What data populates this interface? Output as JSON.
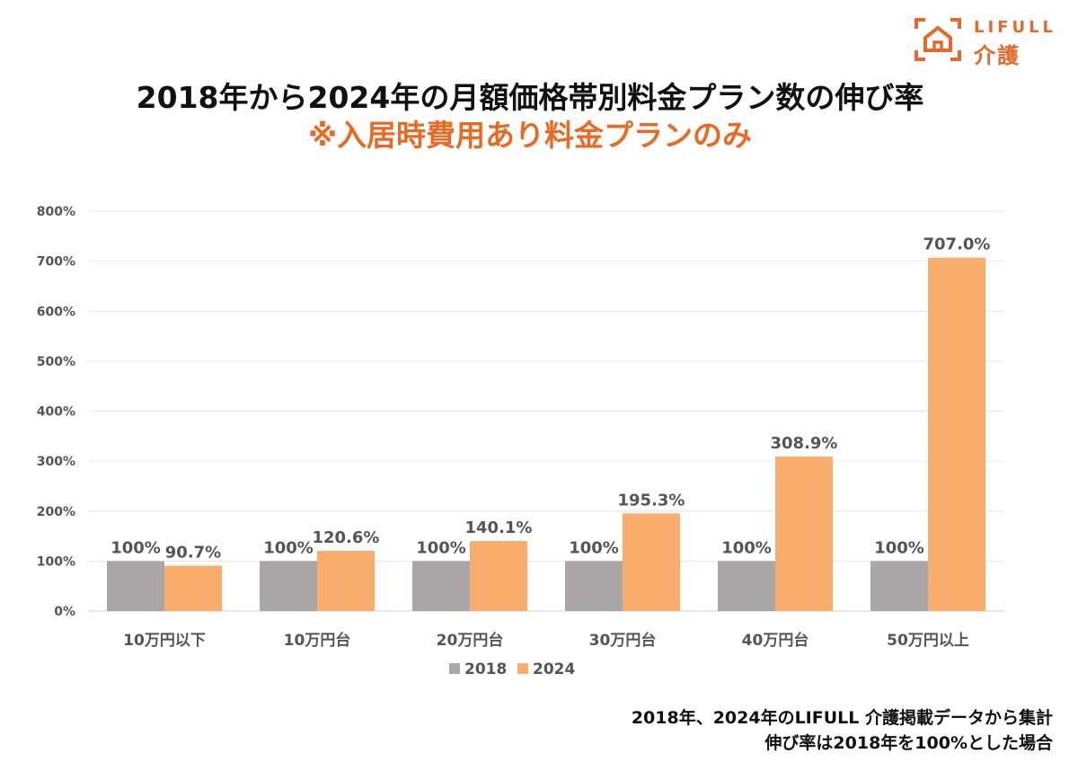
{
  "logo": {
    "brand_en": "LIFULL",
    "brand_jp": "介護"
  },
  "header": {
    "title": "2018年から2024年の月額価格帯別料金プラン数の伸び率",
    "subtitle": "※入居時費用あり料金プランのみ"
  },
  "colors": {
    "series_2018": "#aaa6a8",
    "series_2024": "#f8ad6c",
    "accent": "#ea6a24",
    "grid": "#e6e6e6",
    "text": "#555555"
  },
  "chart_data": {
    "type": "bar",
    "title": "2018年から2024年の月額価格帯別料金プラン数の伸び率",
    "categories": [
      "10万円以下",
      "10万円台",
      "20万円台",
      "30万円台",
      "40万円台",
      "50万円以上"
    ],
    "series": [
      {
        "name": "2018",
        "values": [
          100,
          100,
          100,
          100,
          100,
          100
        ],
        "labels": [
          "100%",
          "100%",
          "100%",
          "100%",
          "100%",
          "100%"
        ]
      },
      {
        "name": "2024",
        "values": [
          90.7,
          120.6,
          140.1,
          195.3,
          308.9,
          707.0
        ],
        "labels": [
          "90.7%",
          "120.6%",
          "140.1%",
          "195.3%",
          "308.9%",
          "707.0%"
        ]
      }
    ],
    "ylim": [
      0,
      800
    ],
    "y_ticks": [
      0,
      100,
      200,
      300,
      400,
      500,
      600,
      700,
      800
    ],
    "y_tick_labels": [
      "0%",
      "100%",
      "200%",
      "300%",
      "400%",
      "500%",
      "600%",
      "700%",
      "800%"
    ],
    "grid": true,
    "legend": "bottom"
  },
  "footer": {
    "note1": "2018年、2024年のLIFULL 介護掲載データから集計",
    "note2": "伸び率は2018年を100%とした場合"
  }
}
